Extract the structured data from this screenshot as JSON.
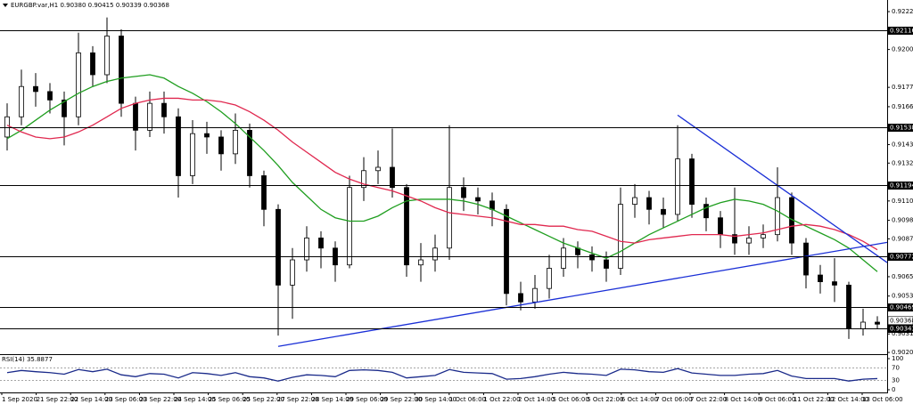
{
  "chart_data": {
    "type": "candlestick",
    "title": "EURGBP.var,H1  0.90380 0.90415 0.90339 0.90368",
    "ylim": [
      0.90195,
      0.92294
    ],
    "yticks": [
      0.92225,
      {
        "value": 0.92,
        "label": "0.92000"
      },
      0.91775,
      {
        "value": 0.9166,
        "label": "0.91660"
      },
      0.91435,
      0.91325,
      {
        "value": 0.911,
        "label": "0.91100"
      },
      0.90985,
      0.90875,
      {
        "value": 0.9065,
        "label": "0.90650"
      },
      0.90535,
      {
        "value": 0.9031,
        "label": "0.90310"
      },
      {
        "value": 0.902,
        "label": "0.90200"
      }
    ],
    "levels": [
      0.92116,
      0.91538,
      0.91194,
      0.90772,
      0.90469,
      0.90343
    ],
    "last_price": 0.90368,
    "x_labels": [
      "1 Sep 2020",
      "21 Sep 22:00",
      "22 Sep 14:00",
      "23 Sep 06:00",
      "23 Sep 22:00",
      "24 Sep 14:00",
      "25 Sep 06:00",
      "25 Sep 22:00",
      "27 Sep 22:00",
      "28 Sep 14:00",
      "29 Sep 06:00",
      "29 Sep 22:00",
      "30 Sep 14:00",
      "1 Oct 06:00",
      "1 Oct 22:00",
      "2 Oct 14:00",
      "5 Oct 06:00",
      "5 Oct 22:00",
      "6 Oct 14:00",
      "7 Oct 06:00",
      "7 Oct 22:00",
      "8 Oct 14:00",
      "9 Oct 06:00",
      "11 Oct 22:00",
      "12 Oct 14:00",
      "13 Oct 06:00"
    ],
    "open": [
      0.9148,
      0.916,
      0.9178,
      0.9175,
      0.917,
      0.916,
      0.9198,
      0.9185,
      0.9208,
      0.9168,
      0.9152,
      0.9168,
      0.916,
      0.9125,
      0.915,
      0.9148,
      0.9138,
      0.9152,
      0.9125,
      0.9105,
      0.906,
      0.9075,
      0.9088,
      0.9082,
      0.9072,
      0.9118,
      0.9128,
      0.913,
      0.9118,
      0.9072,
      0.9075,
      0.9082,
      0.9118,
      0.9112,
      0.911,
      0.9105,
      0.9055,
      0.905,
      0.9058,
      0.907,
      0.9082,
      0.9078,
      0.9075,
      0.907,
      0.9108,
      0.9112,
      0.9105,
      0.9102,
      0.9135,
      0.9108,
      0.91,
      0.909,
      0.9085,
      0.9088,
      0.909,
      0.9112,
      0.9085,
      0.9066,
      0.9062,
      0.906,
      0.9034,
      0.9038
    ],
    "high": [
      0.9168,
      0.9188,
      0.9186,
      0.918,
      0.9175,
      0.921,
      0.9202,
      0.9219,
      0.9212,
      0.9172,
      0.9175,
      0.9175,
      0.9165,
      0.9158,
      0.9157,
      0.9152,
      0.9162,
      0.9156,
      0.9128,
      0.9108,
      0.9082,
      0.9095,
      0.9092,
      0.9086,
      0.9125,
      0.9136,
      0.914,
      0.9153,
      0.912,
      0.9085,
      0.909,
      0.9155,
      0.9124,
      0.9118,
      0.9115,
      0.9108,
      0.9062,
      0.9066,
      0.9078,
      0.9088,
      0.9086,
      0.9083,
      0.908,
      0.9118,
      0.912,
      0.9116,
      0.9112,
      0.9155,
      0.9138,
      0.9112,
      0.9104,
      0.9118,
      0.9095,
      0.9096,
      0.913,
      0.9115,
      0.9088,
      0.9072,
      0.9076,
      0.9062,
      0.9046,
      0.90415
    ],
    "low": [
      0.914,
      0.9155,
      0.9166,
      0.9162,
      0.9143,
      0.9155,
      0.9178,
      0.918,
      0.916,
      0.914,
      0.9148,
      0.915,
      0.9112,
      0.912,
      0.9138,
      0.9128,
      0.9132,
      0.9118,
      0.9095,
      0.903,
      0.904,
      0.9068,
      0.907,
      0.9062,
      0.907,
      0.911,
      0.912,
      0.9112,
      0.9065,
      0.9062,
      0.9068,
      0.9075,
      0.9104,
      0.9102,
      0.9095,
      0.9048,
      0.9045,
      0.9046,
      0.9052,
      0.9065,
      0.907,
      0.9068,
      0.9062,
      0.9066,
      0.91,
      0.9096,
      0.9094,
      0.9098,
      0.91,
      0.9092,
      0.9082,
      0.9078,
      0.9078,
      0.9082,
      0.9086,
      0.9078,
      0.9058,
      0.9055,
      0.905,
      0.9028,
      0.903,
      0.90339
    ],
    "close": [
      0.916,
      0.9178,
      0.9175,
      0.917,
      0.916,
      0.9198,
      0.9185,
      0.9208,
      0.9168,
      0.9152,
      0.9168,
      0.916,
      0.9125,
      0.915,
      0.9148,
      0.9138,
      0.9152,
      0.9125,
      0.9105,
      0.906,
      0.9075,
      0.9088,
      0.9082,
      0.9072,
      0.9118,
      0.9128,
      0.913,
      0.9118,
      0.9072,
      0.9075,
      0.9082,
      0.9118,
      0.9112,
      0.911,
      0.9105,
      0.9055,
      0.905,
      0.9058,
      0.907,
      0.9082,
      0.9078,
      0.9075,
      0.907,
      0.9108,
      0.9112,
      0.9105,
      0.9102,
      0.9135,
      0.9108,
      0.91,
      0.909,
      0.9085,
      0.9088,
      0.909,
      0.9112,
      0.9085,
      0.9066,
      0.9062,
      0.906,
      0.9034,
      0.9038,
      0.90368
    ],
    "series": [
      {
        "color": "#1f9e1f",
        "values": [
          0.9147,
          0.9152,
          0.9158,
          0.9164,
          0.9169,
          0.9174,
          0.9178,
          0.9181,
          0.9183,
          0.9184,
          0.9185,
          0.9183,
          0.9178,
          0.9174,
          0.9169,
          0.9163,
          0.9156,
          0.9148,
          0.914,
          0.9131,
          0.9121,
          0.9113,
          0.9105,
          0.91,
          0.9098,
          0.9098,
          0.9101,
          0.9106,
          0.911,
          0.9111,
          0.9111,
          0.9111,
          0.911,
          0.9108,
          0.9105,
          0.9101,
          0.9097,
          0.9093,
          0.9089,
          0.9085,
          0.9082,
          0.9079,
          0.9076,
          0.908,
          0.9085,
          0.909,
          0.9094,
          0.9098,
          0.9102,
          0.9106,
          0.9109,
          0.9111,
          0.911,
          0.9108,
          0.9104,
          0.9099,
          0.9095,
          0.9091,
          0.9087,
          0.9082,
          0.9075,
          0.9068
        ]
      },
      {
        "color": "#e0284f",
        "values": [
          0.9155,
          0.9151,
          0.9148,
          0.9147,
          0.9148,
          0.9151,
          0.9155,
          0.916,
          0.9165,
          0.9168,
          0.917,
          0.9171,
          0.9171,
          0.917,
          0.917,
          0.9169,
          0.9167,
          0.9163,
          0.9158,
          0.9152,
          0.9145,
          0.9139,
          0.9133,
          0.9127,
          0.9123,
          0.912,
          0.9118,
          0.9116,
          0.9113,
          0.911,
          0.9106,
          0.9103,
          0.9102,
          0.9101,
          0.91,
          0.9098,
          0.9096,
          0.9096,
          0.9095,
          0.9095,
          0.9093,
          0.9092,
          0.9089,
          0.9086,
          0.9085,
          0.9087,
          0.9088,
          0.9089,
          0.909,
          0.909,
          0.909,
          0.9089,
          0.909,
          0.9091,
          0.9093,
          0.9095,
          0.9096,
          0.9095,
          0.9093,
          0.909,
          0.9086,
          0.9081
        ]
      }
    ],
    "trendlines": [
      {
        "color": "#1a2fd6",
        "from_candle": 19,
        "from": 0.90236,
        "to_candle": 61,
        "to": 0.90844
      },
      {
        "color": "#1a2fd6",
        "from_candle": 47,
        "from": 0.9161,
        "to_candle": 61,
        "to": 0.90775
      }
    ],
    "rsi": {
      "label": "RSI(14) 35.8877",
      "color": "#1a2a8a",
      "ylim": [
        0,
        100
      ],
      "yticks": [
        100,
        70,
        30,
        0
      ],
      "values": [
        55,
        62,
        58,
        55,
        50,
        65,
        58,
        66,
        48,
        42,
        52,
        50,
        38,
        55,
        52,
        46,
        55,
        42,
        38,
        28,
        40,
        48,
        46,
        42,
        62,
        64,
        62,
        56,
        38,
        42,
        46,
        65,
        56,
        54,
        52,
        34,
        36,
        42,
        50,
        56,
        52,
        50,
        46,
        66,
        64,
        58,
        56,
        68,
        54,
        50,
        46,
        46,
        50,
        52,
        62,
        44,
        36,
        36,
        36,
        28,
        34,
        35.8877
      ]
    }
  }
}
